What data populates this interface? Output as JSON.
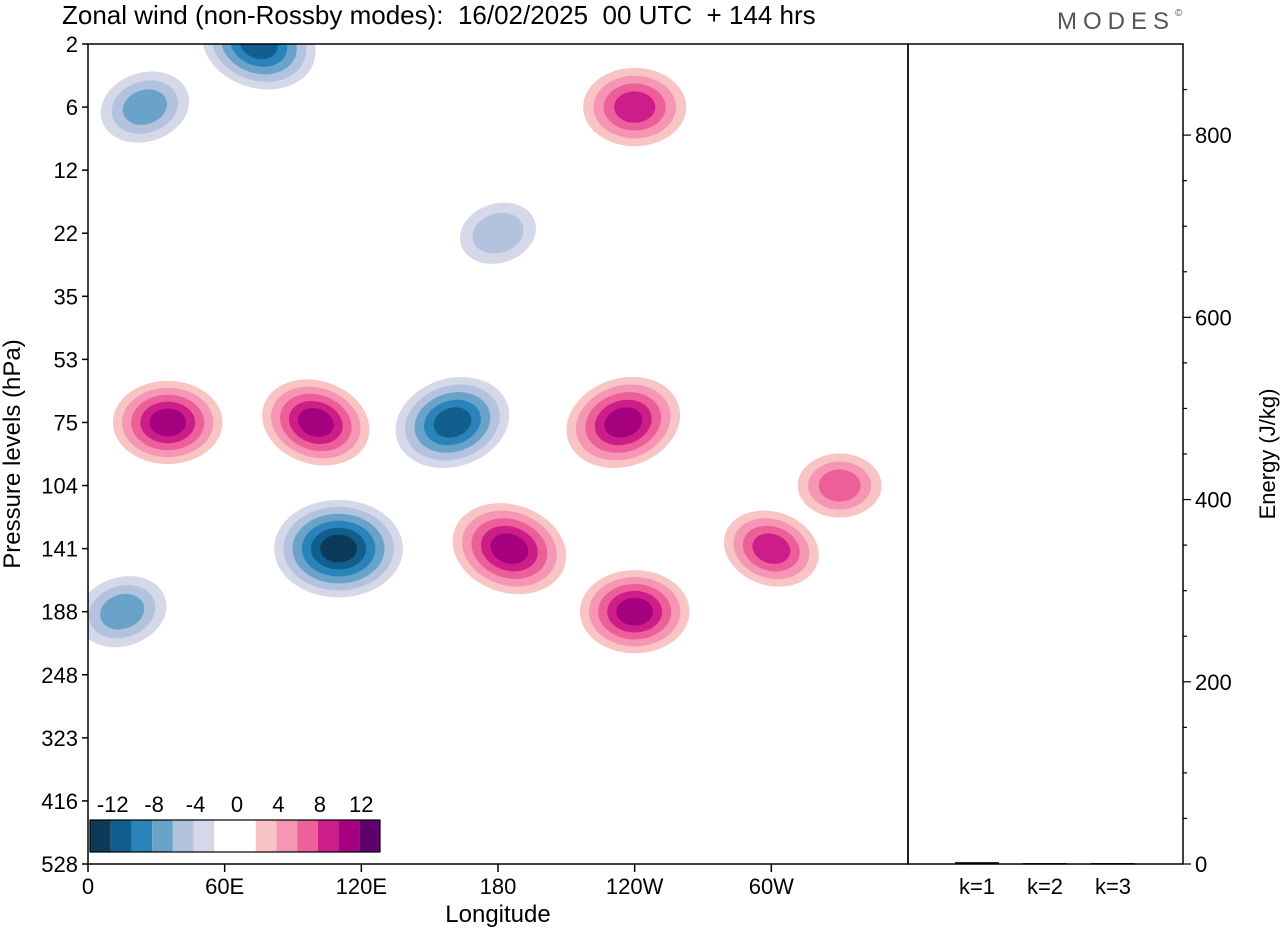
{
  "title": "Zonal wind (non-Rossby modes):  16/02/2025  00 UTC  + 144 hrs",
  "brand": {
    "name": "MODES",
    "mark": "©"
  },
  "chart_data": [
    {
      "type": "heatmap",
      "title": "Zonal wind (non-Rossby modes):  16/02/2025  00 UTC  + 144 hrs",
      "xlabel": "Longitude",
      "ylabel": "Pressure levels (hPa)",
      "x_ticks": [
        "0",
        "60E",
        "120E",
        "180",
        "120W",
        "60W"
      ],
      "x_tick_values": [
        0,
        60,
        120,
        180,
        240,
        300
      ],
      "xlim": [
        0,
        360
      ],
      "y_ticks": [
        "2",
        "6",
        "12",
        "22",
        "35",
        "53",
        "75",
        "104",
        "141",
        "188",
        "248",
        "323",
        "416",
        "528"
      ],
      "colorbar": {
        "labels": [
          "-12",
          "-8",
          "-4",
          "0",
          "4",
          "8",
          "12"
        ],
        "colors": [
          "#0e3a5a",
          "#105f8e",
          "#2b84b9",
          "#6aa3ca",
          "#b3c3de",
          "#d4d8e9",
          "#ffffff",
          "#ffffff",
          "#f8c4c4",
          "#f596b4",
          "#ec5f99",
          "#cc1d88",
          "#a5007e",
          "#5f006b"
        ]
      },
      "features": [
        {
          "lon": 180,
          "level": "22",
          "value": -4
        },
        {
          "lon": 240,
          "level": "6",
          "value": 8
        },
        {
          "lon": 75,
          "level": "2",
          "value": -10
        },
        {
          "lon": 25,
          "level": "6",
          "value": -6
        },
        {
          "lon": 35,
          "level": "75",
          "value": 9
        },
        {
          "lon": 100,
          "level": "75",
          "value": 9
        },
        {
          "lon": 160,
          "level": "75",
          "value": -10
        },
        {
          "lon": 110,
          "level": "141",
          "value": -12
        },
        {
          "lon": 185,
          "level": "141",
          "value": 10
        },
        {
          "lon": 235,
          "level": "75",
          "value": 10
        },
        {
          "lon": 240,
          "level": "188",
          "value": 9
        },
        {
          "lon": 300,
          "level": "141",
          "value": 7
        },
        {
          "lon": 15,
          "level": "188",
          "value": -6
        },
        {
          "lon": 330,
          "level": "104",
          "value": 5
        }
      ]
    },
    {
      "type": "bar",
      "categories": [
        "k=1",
        "k=2",
        "k=3"
      ],
      "values": [
        2,
        1,
        1
      ],
      "ylabel": "Energy (J/kg)",
      "y_ticks": [
        "0",
        "200",
        "400",
        "600",
        "800"
      ],
      "ylim": [
        0,
        900
      ]
    }
  ]
}
